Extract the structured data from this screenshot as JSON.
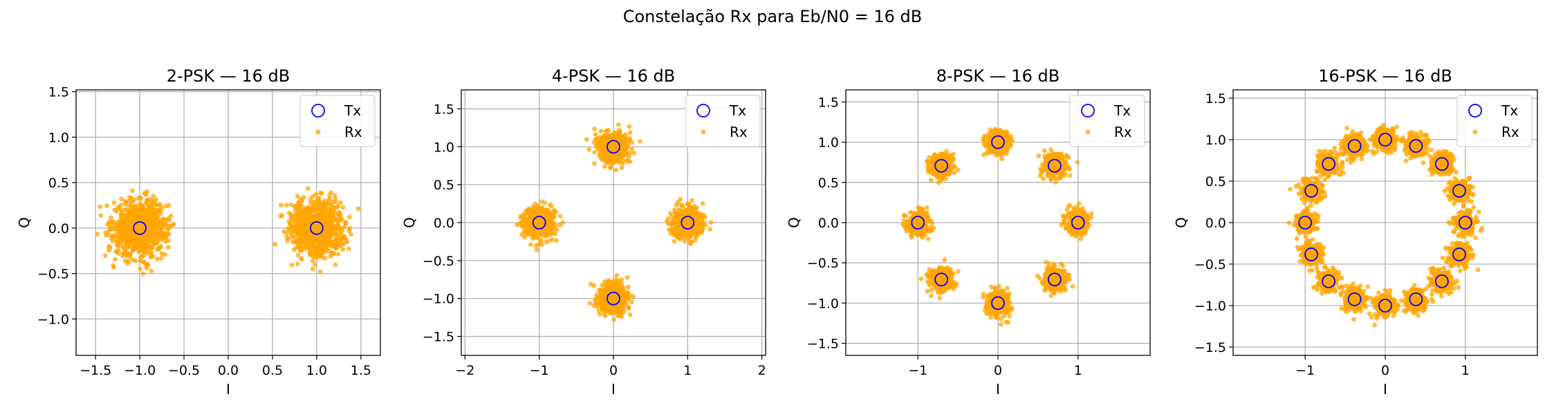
{
  "figure": {
    "suptitle": "Constelação Rx para Eb/N0 = 16 dB"
  },
  "colors": {
    "tx": "#0000ff",
    "rx": "#ffa500",
    "grid": "#b0b0b0",
    "axes": "#000000"
  },
  "chart_data": [
    {
      "type": "scatter",
      "title": "2-PSK — 16 dB",
      "xlabel": "I",
      "ylabel": "Q",
      "xlim": [
        -1.72,
        1.72
      ],
      "ylim": [
        -1.4,
        1.52
      ],
      "xticks": [
        -1.5,
        -1.0,
        -0.5,
        0.0,
        0.5,
        1.0,
        1.5
      ],
      "yticks": [
        -1.0,
        -0.5,
        0.0,
        0.5,
        1.0,
        1.5
      ],
      "tick_format": "0.0",
      "grid": true,
      "legend_position": "upper right",
      "tx_points": [
        [
          -1.0,
          0.0
        ],
        [
          1.0,
          0.0
        ]
      ],
      "rx_cloud": {
        "center_points": "tx_points",
        "spread_sigma": 0.15,
        "samples_per_symbol": 900
      },
      "series": [
        {
          "name": "Tx",
          "marker": "open-circle",
          "color": "#0000ff"
        },
        {
          "name": "Rx",
          "marker": "dot",
          "color": "#ffa500"
        }
      ]
    },
    {
      "type": "scatter",
      "title": "4-PSK — 16 dB",
      "xlabel": "I",
      "ylabel": "Q",
      "xlim": [
        -2.05,
        2.05
      ],
      "ylim": [
        -1.75,
        1.75
      ],
      "xticks": [
        -2,
        -1,
        0,
        1,
        2
      ],
      "yticks": [
        -1.5,
        -1.0,
        -0.5,
        0.0,
        0.5,
        1.0,
        1.5
      ],
      "tick_format": "mixed",
      "grid": true,
      "legend_position": "upper right",
      "tx_points": [
        [
          1.0,
          0.0
        ],
        [
          0.0,
          1.0
        ],
        [
          -1.0,
          0.0
        ],
        [
          0.0,
          -1.0
        ]
      ],
      "rx_cloud": {
        "center_points": "tx_points",
        "spread_sigma": 0.1,
        "samples_per_symbol": 500
      },
      "series": [
        {
          "name": "Tx",
          "marker": "open-circle",
          "color": "#0000ff"
        },
        {
          "name": "Rx",
          "marker": "dot",
          "color": "#ffa500"
        }
      ]
    },
    {
      "type": "scatter",
      "title": "8-PSK — 16 dB",
      "xlabel": "I",
      "ylabel": "Q",
      "xlim": [
        -1.9,
        1.9
      ],
      "ylim": [
        -1.65,
        1.65
      ],
      "xticks": [
        -1,
        0,
        1
      ],
      "yticks": [
        -1.5,
        -1.0,
        -0.5,
        0.0,
        0.5,
        1.0,
        1.5
      ],
      "tick_format": "mixed",
      "grid": true,
      "legend_position": "upper right",
      "tx_points": [
        [
          1.0,
          0.0
        ],
        [
          0.707,
          0.707
        ],
        [
          0.0,
          1.0
        ],
        [
          -0.707,
          0.707
        ],
        [
          -1.0,
          0.0
        ],
        [
          -0.707,
          -0.707
        ],
        [
          0.0,
          -1.0
        ],
        [
          0.707,
          -0.707
        ]
      ],
      "rx_cloud": {
        "center_points": "tx_points",
        "spread_sigma": 0.07,
        "samples_per_symbol": 350
      },
      "series": [
        {
          "name": "Tx",
          "marker": "open-circle",
          "color": "#0000ff"
        },
        {
          "name": "Rx",
          "marker": "dot",
          "color": "#ffa500"
        }
      ]
    },
    {
      "type": "scatter",
      "title": "16-PSK — 16 dB",
      "xlabel": "I",
      "ylabel": "Q",
      "xlim": [
        -1.9,
        1.9
      ],
      "ylim": [
        -1.6,
        1.6
      ],
      "xticks": [
        -1,
        0,
        1
      ],
      "yticks": [
        -1.5,
        -1.0,
        -0.5,
        0.0,
        0.5,
        1.0,
        1.5
      ],
      "tick_format": "mixed",
      "grid": true,
      "legend_position": "upper right",
      "tx_points": [
        [
          1.0,
          0.0
        ],
        [
          0.924,
          0.383
        ],
        [
          0.707,
          0.707
        ],
        [
          0.383,
          0.924
        ],
        [
          0.0,
          1.0
        ],
        [
          -0.383,
          0.924
        ],
        [
          -0.707,
          0.707
        ],
        [
          -0.924,
          0.383
        ],
        [
          -1.0,
          0.0
        ],
        [
          -0.924,
          -0.383
        ],
        [
          -0.707,
          -0.707
        ],
        [
          -0.383,
          -0.924
        ],
        [
          0.0,
          -1.0
        ],
        [
          0.383,
          -0.924
        ],
        [
          0.707,
          -0.707
        ],
        [
          0.924,
          -0.383
        ]
      ],
      "rx_cloud": {
        "center_points": "tx_points",
        "spread_sigma": 0.065,
        "samples_per_symbol": 240
      },
      "series": [
        {
          "name": "Tx",
          "marker": "open-circle",
          "color": "#0000ff"
        },
        {
          "name": "Rx",
          "marker": "dot",
          "color": "#ffa500"
        }
      ]
    }
  ]
}
